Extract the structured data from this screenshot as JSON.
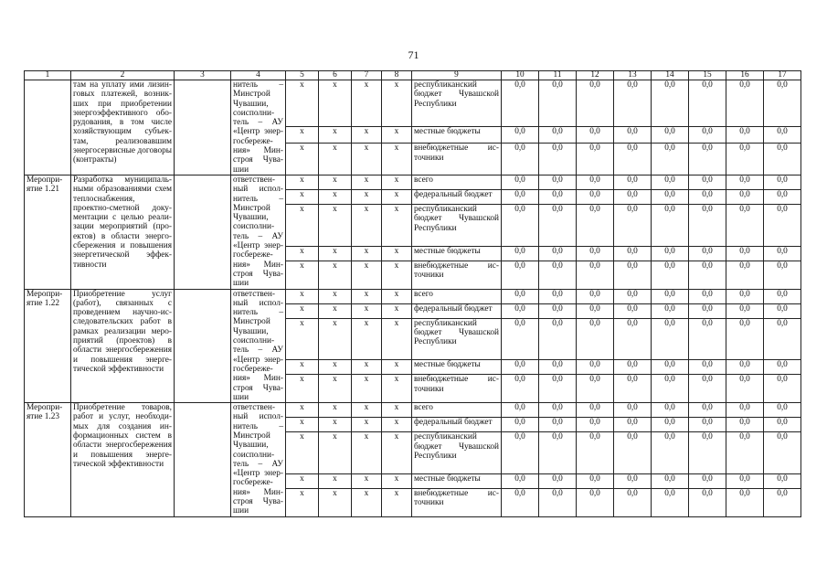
{
  "page_number": "71",
  "header": [
    "1",
    "2",
    "3",
    "4",
    "5",
    "6",
    "7",
    "8",
    "9",
    "10",
    "11",
    "12",
    "13",
    "14",
    "15",
    "16",
    "17"
  ],
  "blocks": [
    {
      "num": "",
      "desc": "там на уплату ими лизин­говых платежей, возник­ших при приобретении энергоэффективного обо­рудования, в том числе хозяйствующим субъек­там, реализовавшим энергосервисные догово­ры (контракты)",
      "col3": "",
      "resp": "нитель – Минстрой Чувашии, соисполни­тель – АУ «Центр энер­госбереже­ния» Мин­строя Чува­шии",
      "rows": [
        {
          "x": [
            "x",
            "x",
            "x",
            "x"
          ],
          "source": "республиканский бюджет Чувашской Республики",
          "values": [
            "0,0",
            "0,0",
            "0,0",
            "0,0",
            "0,0",
            "0,0",
            "0,0",
            "0,0"
          ]
        },
        {
          "x": [
            "x",
            "x",
            "x",
            "x"
          ],
          "source": "местные бюджеты",
          "values": [
            "0,0",
            "0,0",
            "0,0",
            "0,0",
            "0,0",
            "0,0",
            "0,0",
            "0,0"
          ]
        },
        {
          "x": [
            "x",
            "x",
            "x",
            "x"
          ],
          "source": "внебюджетные ис­точники",
          "values": [
            "0,0",
            "0,0",
            "0,0",
            "0,0",
            "0,0",
            "0,0",
            "0,0",
            "0,0"
          ]
        }
      ]
    },
    {
      "num": "Меропри­ятие 1.21",
      "desc": "Разработка муниципаль­ными образованиями схем теплоснабжения, проектно-сметной доку­ментации с целью реали­зации мероприятий (про­ектов) в области энерго­сбережения и повышения энергетической эффек­тивности",
      "col3": "",
      "resp": "ответствен­ный испол­нитель – Минстрой Чувашии, соисполни­тель – АУ «Центр энер­госбереже­ния» Мин­строя Чува­шии",
      "rows": [
        {
          "x": [
            "x",
            "x",
            "x",
            "x"
          ],
          "source": "всего",
          "values": [
            "0,0",
            "0,0",
            "0,0",
            "0,0",
            "0,0",
            "0,0",
            "0,0",
            "0,0"
          ]
        },
        {
          "x": [
            "x",
            "x",
            "x",
            "x"
          ],
          "source": "федеральный бюджет",
          "values": [
            "0,0",
            "0,0",
            "0,0",
            "0,0",
            "0,0",
            "0,0",
            "0,0",
            "0,0"
          ]
        },
        {
          "x": [
            "x",
            "x",
            "x",
            "x"
          ],
          "source": "республиканский бюджет Чувашской Республики",
          "values": [
            "0,0",
            "0,0",
            "0,0",
            "0,0",
            "0,0",
            "0,0",
            "0,0",
            "0,0"
          ]
        },
        {
          "x": [
            "x",
            "x",
            "x",
            "x"
          ],
          "source": "местные бюджеты",
          "values": [
            "0,0",
            "0,0",
            "0,0",
            "0,0",
            "0,0",
            "0,0",
            "0,0",
            "0,0"
          ]
        },
        {
          "x": [
            "x",
            "x",
            "x",
            "x"
          ],
          "source": "внебюджетные ис­точники",
          "values": [
            "0,0",
            "0,0",
            "0,0",
            "0,0",
            "0,0",
            "0,0",
            "0,0",
            "0,0"
          ]
        }
      ]
    },
    {
      "num": "Меропри­ятие 1.22",
      "desc": "Приобретение услуг (работ), связанных с проведением научно-ис­следовательских работ в рамках реализации меро­приятий (проектов) в области энергосбереже­ния и повышения энерге­тической эффективности",
      "col3": "",
      "resp": "ответствен­ный испол­нитель – Минстрой Чувашии, соисполни­тель – АУ «Центр энер­госбереже­ния» Мин­строя Чува­шии",
      "rows": [
        {
          "x": [
            "x",
            "x",
            "x",
            "x"
          ],
          "source": "всего",
          "values": [
            "0,0",
            "0,0",
            "0,0",
            "0,0",
            "0,0",
            "0,0",
            "0,0",
            "0,0"
          ]
        },
        {
          "x": [
            "x",
            "x",
            "x",
            "x"
          ],
          "source": "федеральный бюджет",
          "values": [
            "0,0",
            "0,0",
            "0,0",
            "0,0",
            "0,0",
            "0,0",
            "0,0",
            "0,0"
          ]
        },
        {
          "x": [
            "x",
            "x",
            "x",
            "x"
          ],
          "source": "республиканский бюджет Чувашской Республики",
          "values": [
            "0,0",
            "0,0",
            "0,0",
            "0,0",
            "0,0",
            "0,0",
            "0,0",
            "0,0"
          ]
        },
        {
          "x": [
            "x",
            "x",
            "x",
            "x"
          ],
          "source": "местные бюджеты",
          "values": [
            "0,0",
            "0,0",
            "0,0",
            "0,0",
            "0,0",
            "0,0",
            "0,0",
            "0,0"
          ]
        },
        {
          "x": [
            "x",
            "x",
            "x",
            "x"
          ],
          "source": "внебюджетные ис­точники",
          "values": [
            "0,0",
            "0,0",
            "0,0",
            "0,0",
            "0,0",
            "0,0",
            "0,0",
            "0,0"
          ]
        }
      ]
    },
    {
      "num": "Меропри­ятие 1.23",
      "desc": "Приобретение товаров, работ и услуг, необходи­мых для создания ин­формационных систем в области энергосбереже­ния и повышения энерге­тической эффективности",
      "col3": "",
      "resp": "ответствен­ный испол­нитель – Минстрой Чувашии, соисполни­тель – АУ «Центр энер­госбереже­ния» Мин­строя Чува­шии",
      "rows": [
        {
          "x": [
            "x",
            "x",
            "x",
            "x"
          ],
          "source": "всего",
          "values": [
            "0,0",
            "0,0",
            "0,0",
            "0,0",
            "0,0",
            "0,0",
            "0,0",
            "0,0"
          ]
        },
        {
          "x": [
            "x",
            "x",
            "x",
            "x"
          ],
          "source": "федеральный бюджет",
          "values": [
            "0,0",
            "0,0",
            "0,0",
            "0,0",
            "0,0",
            "0,0",
            "0,0",
            "0,0"
          ]
        },
        {
          "x": [
            "x",
            "x",
            "x",
            "x"
          ],
          "source": "республиканский бюджет Чувашской Республики",
          "values": [
            "0,0",
            "0,0",
            "0,0",
            "0,0",
            "0,0",
            "0,0",
            "0,0",
            "0,0"
          ]
        },
        {
          "x": [
            "x",
            "x",
            "x",
            "x"
          ],
          "source": "местные бюджеты",
          "values": [
            "0,0",
            "0,0",
            "0,0",
            "0,0",
            "0,0",
            "0,0",
            "0,0",
            "0,0"
          ]
        },
        {
          "x": [
            "x",
            "x",
            "x",
            "x"
          ],
          "source": "внебюджетные ис­точники",
          "values": [
            "0,0",
            "0,0",
            "0,0",
            "0,0",
            "0,0",
            "0,0",
            "0,0",
            "0,0"
          ]
        }
      ]
    }
  ]
}
